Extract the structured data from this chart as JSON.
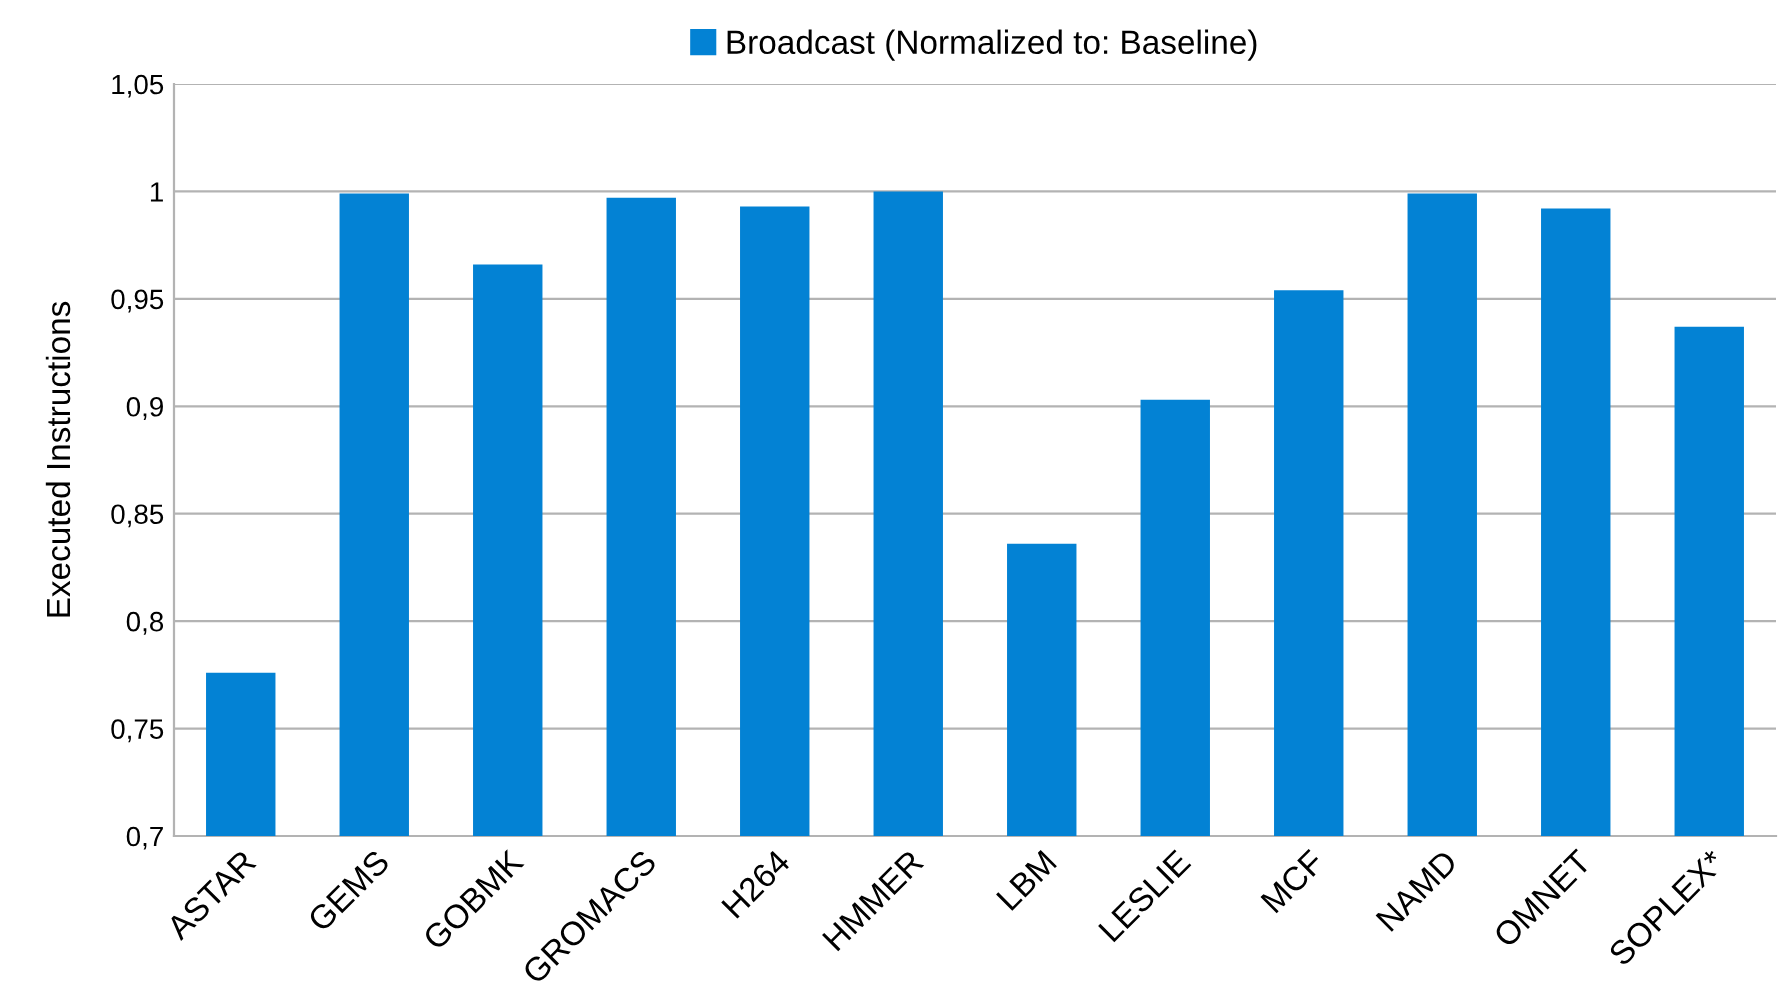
{
  "chart_data": {
    "type": "bar",
    "ylabel": "Executed Instructions",
    "categories": [
      "ASTAR",
      "GEMS",
      "GOBMK",
      "GROMACS",
      "H264",
      "HMMER",
      "LBM",
      "LESLIE",
      "MCF",
      "NAMD",
      "OMNET",
      "SOPLEX*"
    ],
    "series": [
      {
        "name": "Broadcast (Normalized to: Baseline)",
        "color": "#0382d4",
        "values": [
          0.776,
          0.999,
          0.966,
          0.997,
          0.993,
          1.0,
          0.836,
          0.903,
          0.954,
          0.999,
          0.992,
          0.937
        ]
      }
    ],
    "ylim": [
      0.7,
      1.05
    ],
    "yticks": [
      {
        "value": 0.7,
        "label": "0,7"
      },
      {
        "value": 0.75,
        "label": "0,75"
      },
      {
        "value": 0.8,
        "label": "0,8"
      },
      {
        "value": 0.85,
        "label": "0,85"
      },
      {
        "value": 0.9,
        "label": "0,9"
      },
      {
        "value": 0.95,
        "label": "0,95"
      },
      {
        "value": 1.0,
        "label": "1"
      },
      {
        "value": 1.05,
        "label": "1,05"
      }
    ],
    "grid": "y",
    "legend": "top"
  }
}
